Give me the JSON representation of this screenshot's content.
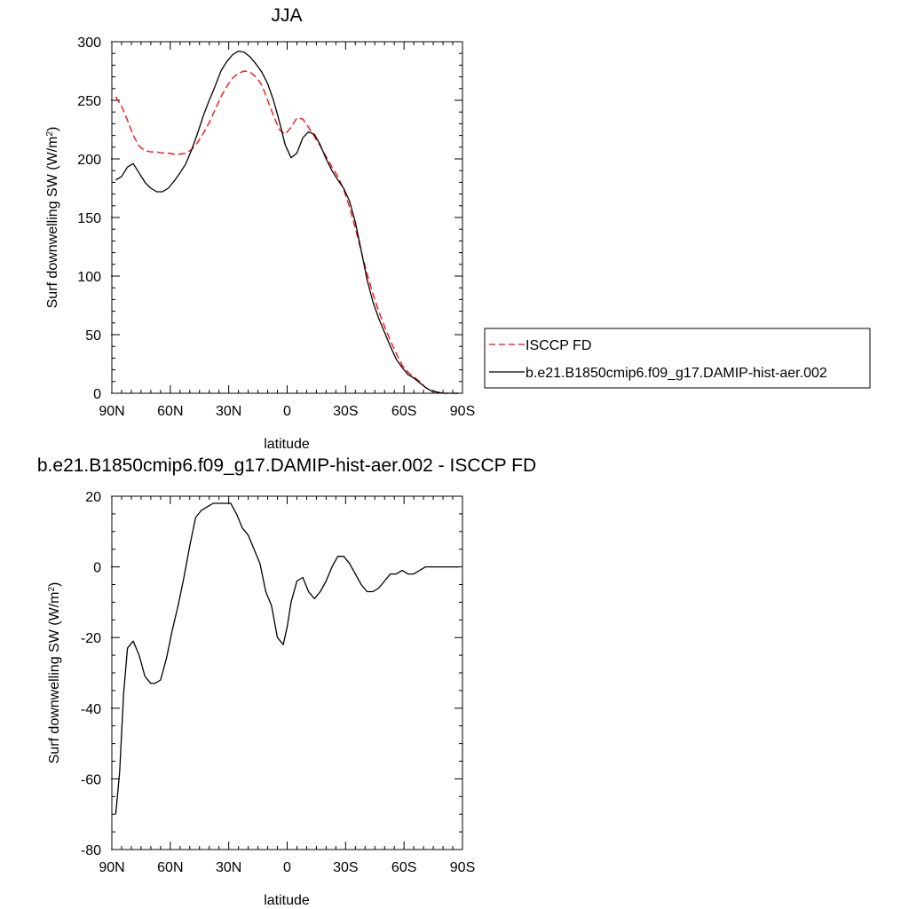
{
  "chart_data": [
    {
      "type": "line",
      "title": "JJA",
      "xlabel": "latitude",
      "ylabel": "Surf downwelling SW (W/m",
      "ylabel_sup": "2",
      "ylabel_close": ")",
      "xlim": [
        90,
        -90
      ],
      "ylim": [
        0,
        300
      ],
      "x_ticks": [
        90,
        60,
        30,
        0,
        -30,
        -60,
        -90
      ],
      "x_tick_labels": [
        "90N",
        "60N",
        "30N",
        "0",
        "30S",
        "60S",
        "90S"
      ],
      "y_ticks": [
        0,
        50,
        100,
        150,
        200,
        250,
        300
      ],
      "y_tick_labels": [
        "0",
        "50",
        "100",
        "150",
        "200",
        "250",
        "300"
      ],
      "legend_position": "right",
      "series": [
        {
          "name": "ISCCP FD",
          "color": "#ff0000",
          "dash": "dashed",
          "x": [
            88,
            85,
            82,
            79,
            76,
            73,
            70,
            67,
            64,
            61,
            58,
            55,
            52,
            49,
            46,
            43,
            40,
            37,
            34,
            31,
            28,
            25,
            22,
            19,
            16,
            13,
            10,
            7,
            4,
            1,
            -2,
            -5,
            -8,
            -11,
            -14,
            -17,
            -20,
            -23,
            -26,
            -29,
            -32,
            -35,
            -38,
            -41,
            -44,
            -47,
            -50,
            -53,
            -56,
            -59,
            -62,
            -65,
            -68,
            -71,
            -74,
            -77,
            -80,
            -83,
            -86,
            -88
          ],
          "y": [
            253,
            245,
            233,
            220,
            211,
            207,
            206,
            206,
            205,
            205,
            204,
            204,
            205,
            208,
            214,
            222,
            231,
            242,
            253,
            262,
            269,
            273,
            275,
            274,
            270,
            263,
            250,
            237,
            225,
            221,
            227,
            235,
            234,
            227,
            219,
            211,
            202,
            193,
            185,
            174,
            159,
            141,
            121,
            102,
            85,
            70,
            57,
            45,
            34,
            24,
            18,
            14,
            10,
            5,
            2,
            1,
            0,
            0,
            0,
            0
          ]
        },
        {
          "name": "b.e21.B1850cmip6.f09_g17.DAMIP-hist-aer.002",
          "color": "#000000",
          "dash": "solid",
          "x": [
            88,
            85,
            82,
            79,
            76,
            73,
            70,
            67,
            64,
            61,
            58,
            55,
            52,
            49,
            46,
            43,
            40,
            37,
            34,
            31,
            28,
            25,
            22,
            19,
            16,
            13,
            10,
            7,
            4,
            1,
            -2,
            -5,
            -8,
            -11,
            -14,
            -17,
            -20,
            -23,
            -26,
            -29,
            -32,
            -35,
            -38,
            -41,
            -44,
            -47,
            -50,
            -53,
            -56,
            -59,
            -62,
            -65,
            -68,
            -71,
            -74,
            -77,
            -80,
            -83,
            -86,
            -88
          ],
          "y": [
            182,
            185,
            193,
            196,
            188,
            180,
            175,
            172,
            172,
            175,
            181,
            188,
            196,
            208,
            222,
            237,
            250,
            262,
            275,
            283,
            289,
            292,
            291,
            287,
            281,
            274,
            264,
            250,
            232,
            212,
            201,
            205,
            218,
            223,
            221,
            212,
            200,
            190,
            182,
            175,
            164,
            146,
            122,
            97,
            78,
            64,
            52,
            40,
            29,
            22,
            16,
            13,
            9,
            5,
            2,
            1,
            0,
            0,
            0,
            0
          ]
        }
      ]
    },
    {
      "type": "line",
      "title": "b.e21.B1850cmip6.f09_g17.DAMIP-hist-aer.002 - ISCCP FD",
      "xlabel": "latitude",
      "ylabel": "Surf downwelling SW (W/m",
      "ylabel_sup": "2",
      "ylabel_close": ")",
      "xlim": [
        90,
        -90
      ],
      "ylim": [
        -80,
        20
      ],
      "x_ticks": [
        90,
        60,
        30,
        0,
        -30,
        -60,
        -90
      ],
      "x_tick_labels": [
        "90N",
        "60N",
        "30N",
        "0",
        "30S",
        "60S",
        "90S"
      ],
      "y_ticks": [
        -80,
        -60,
        -40,
        -20,
        0,
        20
      ],
      "y_tick_labels": [
        "-80",
        "-60",
        "-40",
        "-20",
        "0",
        "20"
      ],
      "series": [
        {
          "color": "#000000",
          "dash": "solid",
          "x": [
            88,
            86,
            84,
            82,
            79,
            76,
            73,
            70,
            68,
            65,
            62,
            59,
            56,
            53,
            50,
            47,
            44,
            41,
            38,
            35,
            32,
            29,
            26,
            23,
            20,
            17,
            14,
            11,
            8,
            5,
            2,
            0,
            -2,
            -5,
            -8,
            -11,
            -14,
            -17,
            -20,
            -23,
            -26,
            -29,
            -32,
            -35,
            -38,
            -41,
            -44,
            -47,
            -50,
            -53,
            -56,
            -59,
            -62,
            -65,
            -68,
            -71,
            -74,
            -77,
            -80,
            -83,
            -86,
            -88
          ],
          "y": [
            -70,
            -58,
            -36,
            -23,
            -21,
            -25,
            -31,
            -33,
            -33,
            -32,
            -26,
            -18,
            -11,
            -3,
            6,
            14,
            16,
            17,
            18,
            18,
            18,
            18,
            15,
            11,
            9,
            5,
            1,
            -7,
            -11,
            -20,
            -22,
            -17,
            -10,
            -4,
            -3,
            -7,
            -9,
            -7,
            -4,
            0,
            3,
            3,
            1,
            -2,
            -5,
            -7,
            -7,
            -6,
            -4,
            -2,
            -2,
            -1,
            -2,
            -2,
            -1,
            0,
            0,
            0,
            0,
            0,
            0,
            0
          ]
        }
      ]
    }
  ]
}
